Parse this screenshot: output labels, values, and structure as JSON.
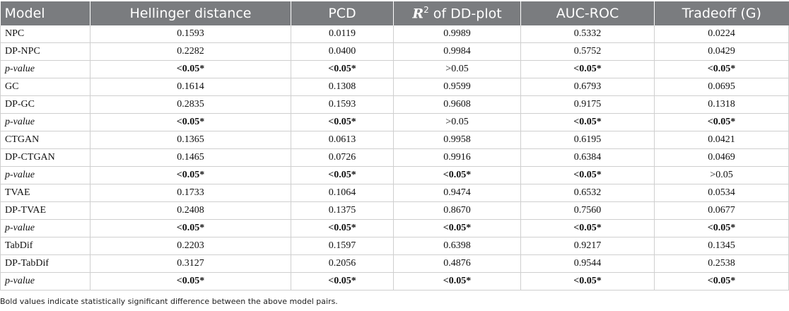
{
  "table": {
    "headers": [
      "Model",
      "Hellinger distance",
      "PCD",
      "R",
      "2",
      " of DD-plot",
      "AUC-ROC",
      "Tradeoff (G)"
    ],
    "rows": [
      {
        "model": "NPC",
        "italic": false,
        "cells": [
          "0.1593",
          "0.0119",
          "0.9989",
          "0.5332",
          "0.0224"
        ]
      },
      {
        "model": "DP-NPC",
        "italic": false,
        "cells": [
          "0.2282",
          "0.0400",
          "0.9984",
          "0.5752",
          "0.0429"
        ]
      },
      {
        "model": "p-value",
        "italic": true,
        "cells": [
          "<0.05*",
          "<0.05*",
          ">0.05",
          "<0.05*",
          "<0.05*"
        ]
      },
      {
        "model": "GC",
        "italic": false,
        "cells": [
          "0.1614",
          "0.1308",
          "0.9599",
          "0.6793",
          "0.0695"
        ]
      },
      {
        "model": "DP-GC",
        "italic": false,
        "cells": [
          "0.2835",
          "0.1593",
          "0.9608",
          "0.9175",
          "0.1318"
        ]
      },
      {
        "model": "p-value",
        "italic": true,
        "cells": [
          "<0.05*",
          "<0.05*",
          ">0.05",
          "<0.05*",
          "<0.05*"
        ]
      },
      {
        "model": "CTGAN",
        "italic": false,
        "cells": [
          "0.1365",
          "0.0613",
          "0.9958",
          "0.6195",
          "0.0421"
        ]
      },
      {
        "model": "DP-CTGAN",
        "italic": false,
        "cells": [
          "0.1465",
          "0.0726",
          "0.9916",
          "0.6384",
          "0.0469"
        ]
      },
      {
        "model": "p-value",
        "italic": true,
        "cells": [
          "<0.05*",
          "<0.05*",
          "<0.05*",
          "<0.05*",
          ">0.05"
        ]
      },
      {
        "model": "TVAE",
        "italic": false,
        "cells": [
          "0.1733",
          "0.1064",
          "0.9474",
          "0.6532",
          "0.0534"
        ]
      },
      {
        "model": "DP-TVAE",
        "italic": false,
        "cells": [
          "0.2408",
          "0.1375",
          "0.8670",
          "0.7560",
          "0.0677"
        ]
      },
      {
        "model": "p-value",
        "italic": true,
        "cells": [
          "<0.05*",
          "<0.05*",
          "<0.05*",
          "<0.05*",
          "<0.05*"
        ]
      },
      {
        "model": "TabDif",
        "italic": false,
        "cells": [
          "0.2203",
          "0.1597",
          "0.6398",
          "0.9217",
          "0.1345"
        ]
      },
      {
        "model": "DP-TabDif",
        "italic": false,
        "cells": [
          "0.3127",
          "0.2056",
          "0.4876",
          "0.9544",
          "0.2538"
        ]
      },
      {
        "model": "p-value",
        "italic": true,
        "cells": [
          "<0.05*",
          "<0.05*",
          "<0.05*",
          "<0.05*",
          "<0.05*"
        ]
      }
    ]
  },
  "footnote": "Bold values indicate statistically significant difference between the above model pairs."
}
